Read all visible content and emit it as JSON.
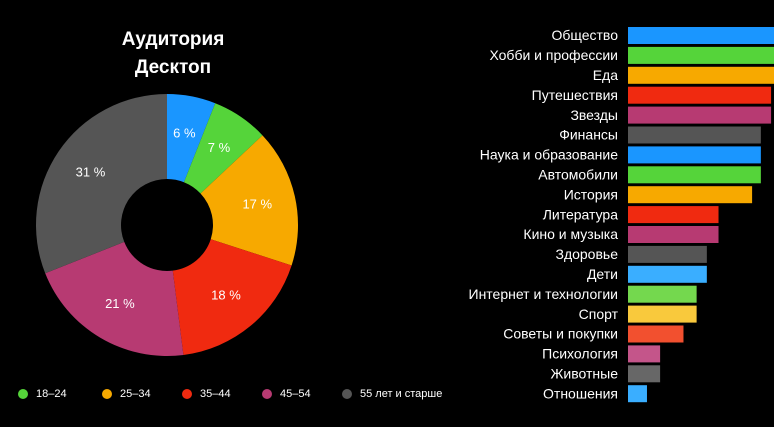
{
  "chart_data": [
    {
      "type": "pie",
      "title": "Аудитория",
      "subtitle": "Десктоп",
      "categories": [
        "18–24",
        "25–34",
        "35–44",
        "45–54",
        "55 лет и старше"
      ],
      "slices": [
        {
          "value": 6,
          "label": "6 %",
          "color": "#1a96ff"
        },
        {
          "value": 7,
          "label": "7 %",
          "color": "#55d43a",
          "legend": "18–24"
        },
        {
          "value": 17,
          "label": "17 %",
          "color": "#f7a900",
          "legend": "25–34"
        },
        {
          "value": 18,
          "label": "18 %",
          "color": "#f02a10",
          "legend": "35–44"
        },
        {
          "value": 21,
          "label": "21 %",
          "color": "#b73a72",
          "legend": "45–54"
        },
        {
          "value": 31,
          "label": "31 %",
          "color": "#555555",
          "legend": "55 лет и старше"
        }
      ],
      "legend": [
        {
          "label": "18–24",
          "color": "#55d43a"
        },
        {
          "label": "25–34",
          "color": "#f7a900"
        },
        {
          "label": "35–44",
          "color": "#f02a10"
        },
        {
          "label": "45–54",
          "color": "#b73a72"
        },
        {
          "label": "55 лет и старше",
          "color": "#555555"
        }
      ],
      "legend_position": "bottom"
    },
    {
      "type": "bar",
      "orientation": "horizontal",
      "axis_visible": false,
      "categories": [
        "Общество",
        "Хобби и профессии",
        "Еда",
        "Путешествия",
        "Звезды",
        "Финансы",
        "Наука и образование",
        "Автомобили",
        "История",
        "Литература",
        "Кино и музыка",
        "Здоровье",
        "Дети",
        "Интернет и технологии",
        "Спорт",
        "Советы и покупки",
        "Психология",
        "Животные",
        "Отношения"
      ],
      "values": [
        100,
        100,
        100,
        98,
        98,
        91,
        91,
        91,
        85,
        62,
        62,
        54,
        54,
        47,
        47,
        38,
        22,
        22,
        13
      ],
      "colors": [
        "#1a96ff",
        "#55d43a",
        "#f7a900",
        "#f02a10",
        "#b73a72",
        "#555555",
        "#1a96ff",
        "#55d43a",
        "#f7a900",
        "#f02a10",
        "#b73a72",
        "#555555",
        "#3aaeff",
        "#74d84e",
        "#f9c93c",
        "#f2502f",
        "#c4558a",
        "#676767",
        "#3aaeff"
      ]
    }
  ]
}
